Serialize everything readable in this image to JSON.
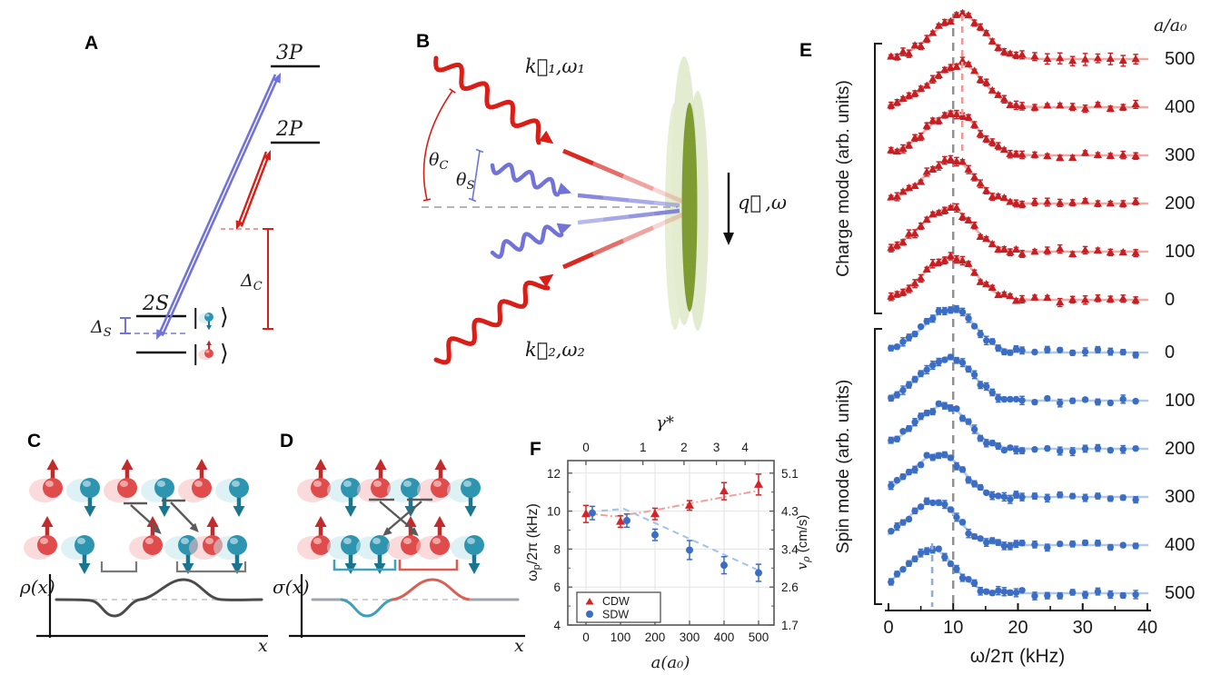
{
  "figure": {
    "panels": {
      "A": {
        "label": "A",
        "level_3p": "3P",
        "level_2p": "2P",
        "level_2s": "2S",
        "ket_open": "|",
        "ket_close": "⟩",
        "delta_c": {
          "sym": "Δ",
          "sub": "C"
        },
        "delta_s": {
          "sym": "Δ",
          "sub": "S"
        }
      },
      "B": {
        "label": "B",
        "k1_label": "k⃗₁,ω₁",
        "k2_label": "k⃗₂,ω₂",
        "theta_c": {
          "sym": "θ",
          "sub": "C"
        },
        "theta_s": {
          "sym": "θ",
          "sub": "S"
        },
        "q_label": "q⃗ ,ω"
      },
      "C": {
        "label": "C",
        "ylabel": "ρ(x)",
        "xlabel": "x",
        "top_row": [
          "up",
          "down",
          "up",
          "down",
          "up",
          "down"
        ],
        "bottom_row": [
          "up",
          "down",
          "up",
          "down",
          "up",
          "down"
        ]
      },
      "D": {
        "label": "D",
        "ylabel": "σ(x)",
        "xlabel": "x",
        "top_row": [
          "up",
          "down",
          "up",
          "down",
          "up",
          "down"
        ],
        "bottom_row": [
          "up",
          "down",
          "down",
          "up",
          "up",
          "down"
        ]
      },
      "E": {
        "label": "E"
      },
      "F": {
        "label": "F"
      }
    }
  },
  "chart_data": [
    {
      "panel": "E",
      "type": "line",
      "xlabel": "ω/2π (kHz)",
      "x_range": [
        0,
        40
      ],
      "x_ticks": [
        0,
        10,
        20,
        30,
        40
      ],
      "x_minor_ticks": [
        5,
        15,
        25,
        35
      ],
      "right_axis_title": "a/a₀",
      "error_bars": true,
      "reference_lines": [
        {
          "x_khz": 10.0,
          "color": "#8F8F8F",
          "style": "dashed",
          "extent": "full"
        },
        {
          "x_khz": 11.4,
          "color": "#EE9A94",
          "style": "dashed",
          "extent": "top"
        },
        {
          "x_khz": 6.75,
          "color": "#8FAEDC",
          "style": "dashed",
          "extent": "bottom"
        }
      ],
      "groups": [
        {
          "name": "Charge mode (arb. units)",
          "marker": "triangle",
          "color": "#C51F24",
          "fit_color": "#F2A9A4",
          "spectra": [
            {
              "a_over_a0": 500,
              "peak_khz": 11.4
            },
            {
              "a_over_a0": 400,
              "peak_khz": 11.05
            },
            {
              "a_over_a0": 300,
              "peak_khz": 10.3
            },
            {
              "a_over_a0": 200,
              "peak_khz": 9.85
            },
            {
              "a_over_a0": 100,
              "peak_khz": 9.45
            },
            {
              "a_over_a0": 0,
              "peak_khz": 9.9
            }
          ]
        },
        {
          "name": "Spin mode (arb. units)",
          "marker": "circle",
          "color": "#3B6DC5",
          "fit_color": "#AFC9EB",
          "spectra": [
            {
              "a_over_a0": 0,
              "peak_khz": 9.9
            },
            {
              "a_over_a0": 100,
              "peak_khz": 9.5
            },
            {
              "a_over_a0": 200,
              "peak_khz": 8.75
            },
            {
              "a_over_a0": 300,
              "peak_khz": 7.95
            },
            {
              "a_over_a0": 400,
              "peak_khz": 7.15
            },
            {
              "a_over_a0": 500,
              "peak_khz": 6.75
            }
          ]
        }
      ]
    },
    {
      "panel": "F",
      "type": "scatter",
      "xlabel": "a(a₀)",
      "x_ticks": [
        0,
        100,
        200,
        300,
        400,
        500
      ],
      "top_axis_label": "γ*",
      "top_ticks": {
        "values": [
          0,
          1,
          2,
          3,
          4
        ],
        "positions_a": [
          0,
          165,
          284,
          378,
          461
        ]
      },
      "ylabel_parts": {
        "main": "ω",
        "sub": "p",
        "rest": "/2π (kHz)"
      },
      "y_ticks": [
        4,
        6,
        8,
        10,
        12
      ],
      "y_range": [
        4,
        12.67
      ],
      "right_ylabel_parts": {
        "main": "v",
        "sub": "ρ",
        "rest": " (cm/s)"
      },
      "right_ticks": [
        5.1,
        4.3,
        3.4,
        2.6,
        1.7
      ],
      "grid": true,
      "legend_position": "bottom-left",
      "series": [
        {
          "name": "CDW",
          "marker": "triangle",
          "color": "#D42427",
          "trend_style": "dash-dot",
          "trend_color": "#F0A09C",
          "x": [
            0,
            100,
            200,
            300,
            400,
            500
          ],
          "y": [
            9.85,
            9.45,
            9.85,
            10.3,
            11.05,
            11.4
          ],
          "yerr": [
            0.45,
            0.3,
            0.3,
            0.25,
            0.45,
            0.55
          ],
          "trend_points": [
            [
              0,
              9.9
            ],
            [
              80,
              9.72
            ],
            [
              170,
              9.95
            ],
            [
              300,
              10.4
            ],
            [
              500,
              11.08
            ]
          ]
        },
        {
          "name": "SDW",
          "marker": "circle",
          "color": "#3B6DC5",
          "trend_style": "dashed",
          "trend_color": "#9FC2E8",
          "x": [
            0,
            100,
            200,
            300,
            400,
            500
          ],
          "y": [
            9.9,
            9.5,
            8.75,
            7.95,
            7.15,
            6.75
          ],
          "yerr": [
            0.35,
            0.35,
            0.3,
            0.5,
            0.45,
            0.45
          ],
          "trend_points": [
            [
              45,
              10.02
            ],
            [
              110,
              10.12
            ],
            [
              500,
              6.88
            ]
          ]
        }
      ]
    }
  ]
}
